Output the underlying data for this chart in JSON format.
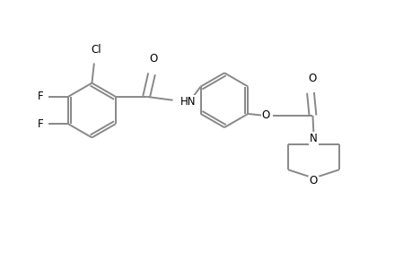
{
  "background_color": "#ffffff",
  "bond_color": "#888888",
  "label_color": "#000000",
  "line_width": 1.4,
  "font_size": 8.5,
  "figsize": [
    4.6,
    3.0
  ],
  "dpi": 100,
  "xlim": [
    0,
    9.2
  ],
  "ylim": [
    0,
    6.0
  ]
}
